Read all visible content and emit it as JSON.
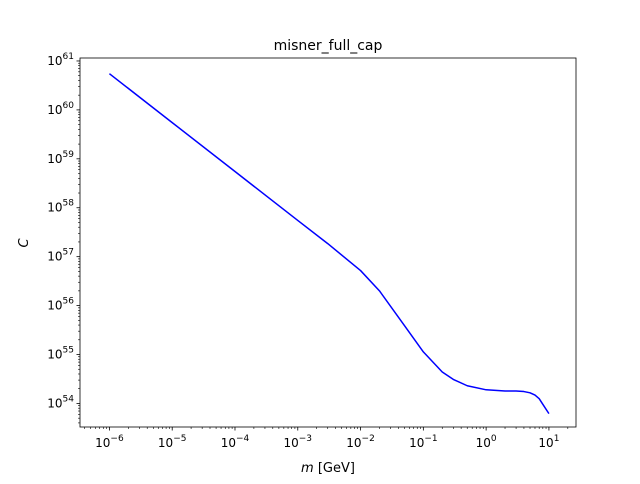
{
  "chart_data": {
    "type": "line",
    "title": "misner_full_cap",
    "xlabel": "m [GeV]",
    "xlabel_var": "m",
    "xlabel_unit": " [GeV]",
    "ylabel": "C",
    "xscale": "log",
    "yscale": "log",
    "xlim": [
      3.4e-07,
      27
    ],
    "ylim": [
      3.3e+53,
      1.15e+61
    ],
    "grid": false,
    "x_ticks": [
      {
        "value": 1e-06,
        "base": "10",
        "exp": "−6"
      },
      {
        "value": 1e-05,
        "base": "10",
        "exp": "−5"
      },
      {
        "value": 0.0001,
        "base": "10",
        "exp": "−4"
      },
      {
        "value": 0.001,
        "base": "10",
        "exp": "−3"
      },
      {
        "value": 0.01,
        "base": "10",
        "exp": "−2"
      },
      {
        "value": 0.1,
        "base": "10",
        "exp": "−1"
      },
      {
        "value": 1,
        "base": "10",
        "exp": "0"
      },
      {
        "value": 10,
        "base": "10",
        "exp": "1"
      }
    ],
    "y_ticks": [
      {
        "value": 1e+54,
        "base": "10",
        "exp": "54"
      },
      {
        "value": 1e+55,
        "base": "10",
        "exp": "55"
      },
      {
        "value": 1e+56,
        "base": "10",
        "exp": "56"
      },
      {
        "value": 1e+57,
        "base": "10",
        "exp": "57"
      },
      {
        "value": 1e+58,
        "base": "10",
        "exp": "58"
      },
      {
        "value": 1e+59,
        "base": "10",
        "exp": "59"
      },
      {
        "value": 1e+60,
        "base": "10",
        "exp": "60"
      },
      {
        "value": 1e+61,
        "base": "10",
        "exp": "61"
      }
    ],
    "series": [
      {
        "color": "#0000ff",
        "x": [
          1e-06,
          1e-05,
          0.0001,
          0.001,
          0.003,
          0.01,
          0.02,
          0.05,
          0.1,
          0.2,
          0.3,
          0.5,
          1,
          2,
          3,
          4,
          5,
          6,
          7,
          8,
          10
        ],
        "y": [
          5.5e+60,
          5.5e+59,
          5.5e+58,
          5.5e+57,
          1.85e+57,
          5.2e+56,
          2e+56,
          3.9e+55,
          1.13e+55,
          4.4e+54,
          3.1e+54,
          2.3e+54,
          1.9e+54,
          1.8e+54,
          1.8e+54,
          1.75e+54,
          1.65e+54,
          1.48e+54,
          1.25e+54,
          9.6e+53,
          6.2e+53
        ]
      }
    ]
  }
}
